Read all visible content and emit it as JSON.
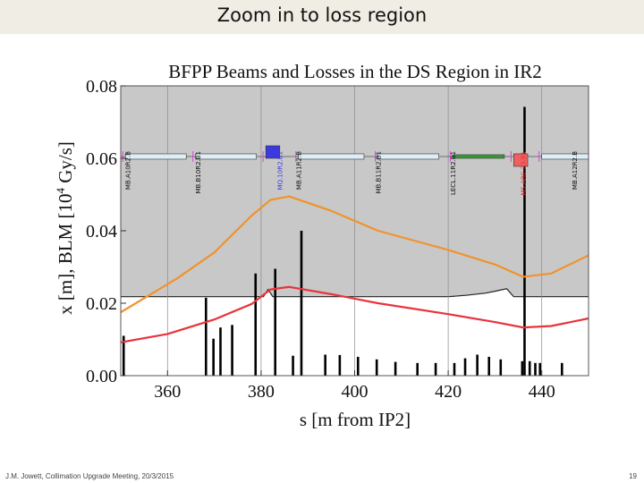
{
  "slide": {
    "title": "Zoom in to loss region",
    "footer_left": "J.M. Jowett, Collimation Upgrade Meeting, 20/3/2015",
    "page_number": "19"
  },
  "colors": {
    "aperture_fill": "#c8c8c8",
    "orange_curve": "#f0932e",
    "red_curve": "#e8343a",
    "bars": "#000000",
    "magnet_box": "#ddeef6",
    "blue_element": "#3a3ae0",
    "red_element": "#f06060",
    "magenta_marker": "#e040e0",
    "green_element": "#3a9a3a"
  },
  "chart_data": {
    "type": "line+bar",
    "title": "BFPP Beams and Losses in the DS Region in IR2",
    "xlabel": "s [m from IP2]",
    "ylabel": "x [m],  BLM [10^4 Gy/s]",
    "ylabel_parts": {
      "pre": "x [m],  BLM [10",
      "sup": "4",
      "post": " Gy/s]"
    },
    "xlim": [
      350,
      450
    ],
    "ylim": [
      0,
      0.08
    ],
    "xticks": [
      360,
      380,
      400,
      420,
      440
    ],
    "yticks": [
      0.0,
      0.02,
      0.04,
      0.06,
      0.08
    ],
    "ytick_labels": [
      "0.00",
      "0.02",
      "0.04",
      "0.06",
      "0.08"
    ],
    "grid_x": [
      360,
      380,
      400,
      420,
      440
    ],
    "aperture_boundary": {
      "x": [
        350,
        380.5,
        381.5,
        382.5,
        396,
        402,
        415,
        420,
        424,
        428,
        430,
        432.5,
        434,
        450
      ],
      "y": [
        0.0218,
        0.0218,
        0.0238,
        0.0218,
        0.0218,
        0.0218,
        0.0218,
        0.0218,
        0.0222,
        0.0228,
        0.0233,
        0.024,
        0.0218,
        0.0218
      ]
    },
    "series": [
      {
        "name": "orange envelope",
        "color": "#f0932e",
        "x": [
          350,
          362,
          370,
          378,
          382,
          386,
          395,
          405,
          420,
          430,
          436,
          442,
          450
        ],
        "y": [
          0.0175,
          0.0268,
          0.034,
          0.0442,
          0.0485,
          0.0495,
          0.0455,
          0.04,
          0.0347,
          0.0307,
          0.0273,
          0.0282,
          0.0332
        ]
      },
      {
        "name": "red envelope",
        "color": "#e8343a",
        "x": [
          350,
          360,
          370,
          378,
          382,
          386,
          395,
          405,
          420,
          430,
          436,
          442,
          450
        ],
        "y": [
          0.0092,
          0.0115,
          0.0155,
          0.0198,
          0.0238,
          0.0245,
          0.0225,
          0.02,
          0.017,
          0.0148,
          0.0133,
          0.0137,
          0.0158
        ]
      }
    ],
    "bars": {
      "x": [
        350.6,
        368.2,
        369.8,
        371.3,
        373.8,
        378.8,
        383.0,
        386.8,
        388.6,
        393.7,
        396.8,
        400.7,
        404.7,
        408.7,
        413.4,
        417.3,
        421.3,
        423.6,
        426.2,
        428.7,
        431.2,
        435.8,
        436.3,
        437.4,
        438.6,
        439.6,
        444.3
      ],
      "y": [
        0.011,
        0.0215,
        0.0102,
        0.0133,
        0.014,
        0.0282,
        0.0295,
        0.0055,
        0.04,
        0.0058,
        0.0057,
        0.0052,
        0.0045,
        0.0038,
        0.0035,
        0.0035,
        0.0035,
        0.0048,
        0.0058,
        0.0052,
        0.0045,
        0.004,
        0.0742,
        0.004,
        0.0035,
        0.0035,
        0.0035
      ]
    },
    "beamline_elements": [
      {
        "type": "box",
        "x0": 351,
        "x1": 364,
        "color": "#ddeef6"
      },
      {
        "type": "box",
        "x0": 366,
        "x1": 379,
        "color": "#ddeef6"
      },
      {
        "type": "box",
        "x0": 381,
        "x1": 384,
        "color": "#3a3ae0"
      },
      {
        "type": "box",
        "x0": 388,
        "x1": 402,
        "color": "#ddeef6"
      },
      {
        "type": "box",
        "x0": 405,
        "x1": 418,
        "color": "#ddeef6"
      },
      {
        "type": "box",
        "x0": 421,
        "x1": 432,
        "color": "#3a9a3a"
      },
      {
        "type": "box",
        "x0": 434,
        "x1": 437,
        "color": "#f06060"
      },
      {
        "type": "box",
        "x0": 440,
        "x1": 450,
        "color": "#ddeef6"
      }
    ],
    "element_labels": [
      {
        "text": "MB.A10R2.B",
        "x": 352,
        "color": "#111111"
      },
      {
        "text": "MB.B10R2.B1",
        "x": 367,
        "color": "#111111"
      },
      {
        "text": "MQ.10R2.B1",
        "x": 384.5,
        "color": "#3a3ae0"
      },
      {
        "text": "MB.A11R2.B",
        "x": 388.5,
        "color": "#111111"
      },
      {
        "text": "MB.B11R2.B1",
        "x": 405.5,
        "color": "#111111"
      },
      {
        "text": "LECL.11R2.B1",
        "x": 421.5,
        "color": "#111111"
      },
      {
        "text": "MS.ARC.23.B1",
        "x": 436.5,
        "color": "#e8343a"
      },
      {
        "text": "MB.A12R2.B",
        "x": 447.5,
        "color": "#111111"
      }
    ]
  }
}
